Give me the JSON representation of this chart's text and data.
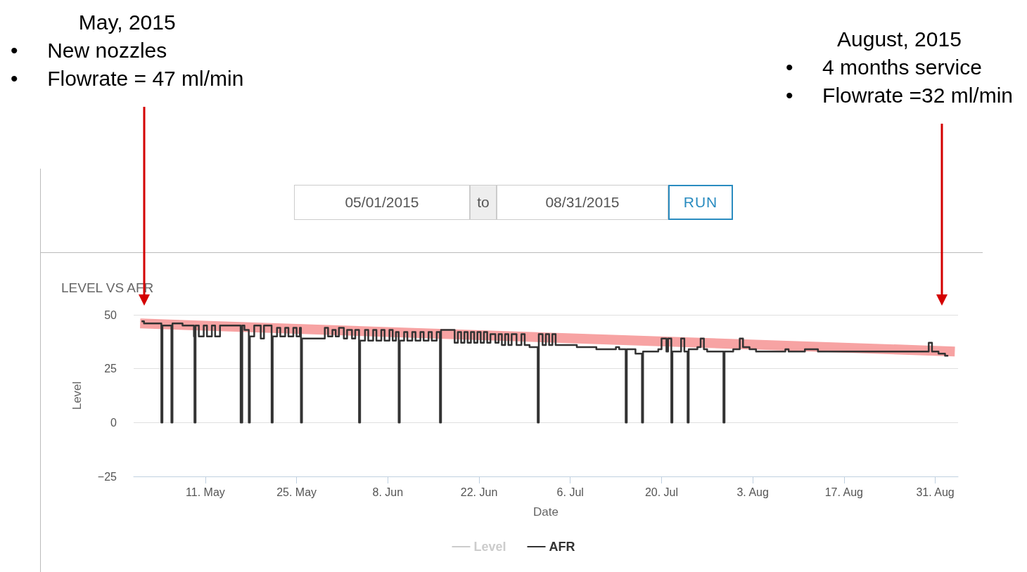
{
  "chart_data": {
    "type": "step",
    "title": "LEVEL VS AFR",
    "xlabel": "Date",
    "ylabel": "Level",
    "annotations": [
      "May, 2015\n•     New nozzles\n•     Flowrate = 47 ml/min",
      "August, 2015\n•     4 months service\n•     Flowrate =32 ml/min",
      "05/01/2015",
      "to",
      "08/31/2015",
      "RUN"
    ],
    "xlim": [
      "2015-04-30",
      "2015-09-03T12:00"
    ],
    "xticks": [
      {
        "value": "2015-05-11",
        "label": "11. May"
      },
      {
        "value": "2015-05-25",
        "label": "25. May"
      },
      {
        "value": "2015-06-08",
        "label": "8. Jun"
      },
      {
        "value": "2015-06-22",
        "label": "22. Jun"
      },
      {
        "value": "2015-07-06",
        "label": "6. Jul"
      },
      {
        "value": "2015-07-20",
        "label": "20. Jul"
      },
      {
        "value": "2015-08-03",
        "label": "3. Aug"
      },
      {
        "value": "2015-08-17",
        "label": "17. Aug"
      },
      {
        "value": "2015-08-31",
        "label": "31. Aug"
      }
    ],
    "ylim": [
      -25,
      50
    ],
    "yticks": [
      {
        "value": -25,
        "label": "−25"
      },
      0,
      25,
      50
    ],
    "grid": "y",
    "legend": "bottom",
    "series": [
      {
        "name": "Level",
        "color": "#cccccc"
      },
      {
        "name": "AFR",
        "color": "#333333",
        "x": [
          "2015-05-01T05:00",
          "2015-05-01T14:00",
          "2015-05-04T06:00",
          "2015-05-04T10:00",
          "2015-05-05T19:00",
          "2015-05-05T23:00",
          "2015-05-07T12:00",
          "2015-05-09T06:00",
          "2015-05-09T08:00",
          "2015-05-09T12:00",
          "2015-05-10T00:00",
          "2015-05-10T18:00",
          "2015-05-11T06:00",
          "2015-05-12T00:00",
          "2015-05-12T12:00",
          "2015-05-13T06:00",
          "2015-05-16T10:00",
          "2015-05-16T16:00",
          "2015-05-17T00:00",
          "2015-05-17T16:00",
          "2015-05-17T20:00",
          "2015-05-18T12:00",
          "2015-05-19T12:00",
          "2015-05-20T00:00",
          "2015-05-21T04:00",
          "2015-05-21T08:00",
          "2015-05-22T00:00",
          "2015-05-22T12:00",
          "2015-05-23T06:00",
          "2015-05-23T18:00",
          "2015-05-24T12:00",
          "2015-05-25T00:00",
          "2015-05-25T12:00",
          "2015-05-25T16:00",
          "2015-05-25T20:00",
          "2015-05-29T08:00",
          "2015-05-29T20:00",
          "2015-05-30T12:00",
          "2015-05-31T00:00",
          "2015-05-31T12:00",
          "2015-06-01T06:00",
          "2015-06-01T18:00",
          "2015-06-02T12:00",
          "2015-06-03T00:00",
          "2015-06-03T14:00",
          "2015-06-03T18:00",
          "2015-06-04T12:00",
          "2015-06-05T00:00",
          "2015-06-05T18:00",
          "2015-06-06T06:00",
          "2015-06-07T00:00",
          "2015-06-07T12:00",
          "2015-06-08T06:00",
          "2015-06-08T18:00",
          "2015-06-09T06:00",
          "2015-06-09T16:00",
          "2015-06-09T20:00",
          "2015-06-10T12:00",
          "2015-06-11T00:00",
          "2015-06-11T18:00",
          "2015-06-12T06:00",
          "2015-06-13T00:00",
          "2015-06-13T12:00",
          "2015-06-14T06:00",
          "2015-06-14T18:00",
          "2015-06-15T12:00",
          "2015-06-16T00:00",
          "2015-06-16T04:00",
          "2015-06-18T06:00",
          "2015-06-18T18:00",
          "2015-06-19T06:00",
          "2015-06-19T18:00",
          "2015-06-20T06:00",
          "2015-06-20T18:00",
          "2015-06-21T06:00",
          "2015-06-21T18:00",
          "2015-06-22T06:00",
          "2015-06-22T18:00",
          "2015-06-23T06:00",
          "2015-06-23T18:00",
          "2015-06-24T12:00",
          "2015-06-25T00:00",
          "2015-06-25T12:00",
          "2015-06-26T00:00",
          "2015-06-26T12:00",
          "2015-06-27T00:00",
          "2015-06-27T18:00",
          "2015-06-28T12:00",
          "2015-06-29T00:00",
          "2015-06-29T18:00",
          "2015-07-01T00:00",
          "2015-07-01T04:00",
          "2015-07-01T18:00",
          "2015-07-02T06:00",
          "2015-07-02T18:00",
          "2015-07-03T06:00",
          "2015-07-03T18:00",
          "2015-07-04T06:00",
          "2015-07-07T00:00",
          "2015-07-10T00:00",
          "2015-07-13T00:00",
          "2015-07-13T12:00",
          "2015-07-14T12:00",
          "2015-07-14T16:00",
          "2015-07-16T00:00",
          "2015-07-17T00:00",
          "2015-07-17T04:00",
          "2015-07-19T12:00",
          "2015-07-20T00:00",
          "2015-07-20T18:00",
          "2015-07-21T00:00",
          "2015-07-21T12:00",
          "2015-07-21T16:00",
          "2015-07-23T00:00",
          "2015-07-23T12:00",
          "2015-07-24T00:00",
          "2015-07-24T04:00",
          "2015-07-25T12:00",
          "2015-07-26T00:00",
          "2015-07-26T12:00",
          "2015-07-27T00:00",
          "2015-07-29T12:00",
          "2015-07-29T16:00",
          "2015-07-31T00:00",
          "2015-08-01T00:00",
          "2015-08-01T12:00",
          "2015-08-02T12:00",
          "2015-08-03T12:00",
          "2015-08-08T00:00",
          "2015-08-08T12:00",
          "2015-08-11T00:00",
          "2015-08-13T00:00",
          "2015-08-30T00:00",
          "2015-08-30T12:00",
          "2015-08-31T12:00",
          "2015-09-01T12:00",
          "2015-09-02T00:00"
        ],
        "values": [
          47,
          46,
          0,
          45,
          0,
          46,
          45,
          40,
          0,
          45,
          40,
          45,
          40,
          45,
          40,
          45,
          0,
          45,
          43,
          0,
          40,
          45,
          39,
          45,
          0,
          40,
          44,
          40,
          44,
          40,
          44,
          40,
          44,
          0,
          39,
          44,
          40,
          43,
          40,
          44,
          39,
          43,
          39,
          43,
          0,
          38,
          43,
          38,
          43,
          38,
          43,
          38,
          43,
          38,
          42,
          0,
          38,
          42,
          38,
          42,
          38,
          42,
          38,
          42,
          38,
          42,
          0,
          43,
          37,
          42,
          37,
          42,
          37,
          42,
          37,
          42,
          37,
          42,
          37,
          41,
          37,
          41,
          36,
          41,
          36,
          41,
          36,
          41,
          36,
          35,
          0,
          41,
          36,
          41,
          36,
          41,
          36,
          36,
          35,
          34,
          35,
          34,
          0,
          34,
          32,
          0,
          33,
          34,
          39,
          33,
          39,
          0,
          33,
          39,
          33,
          0,
          34,
          35,
          39,
          34,
          33,
          0,
          33,
          34,
          39,
          35,
          34,
          33,
          34,
          33,
          34,
          33,
          37,
          33,
          32,
          31,
          31
        ]
      },
      {
        "type": "line",
        "color": "#f7a3a3",
        "x": [
          "2015-05-01",
          "2015-09-03"
        ],
        "values": [
          46,
          33
        ]
      }
    ]
  }
}
